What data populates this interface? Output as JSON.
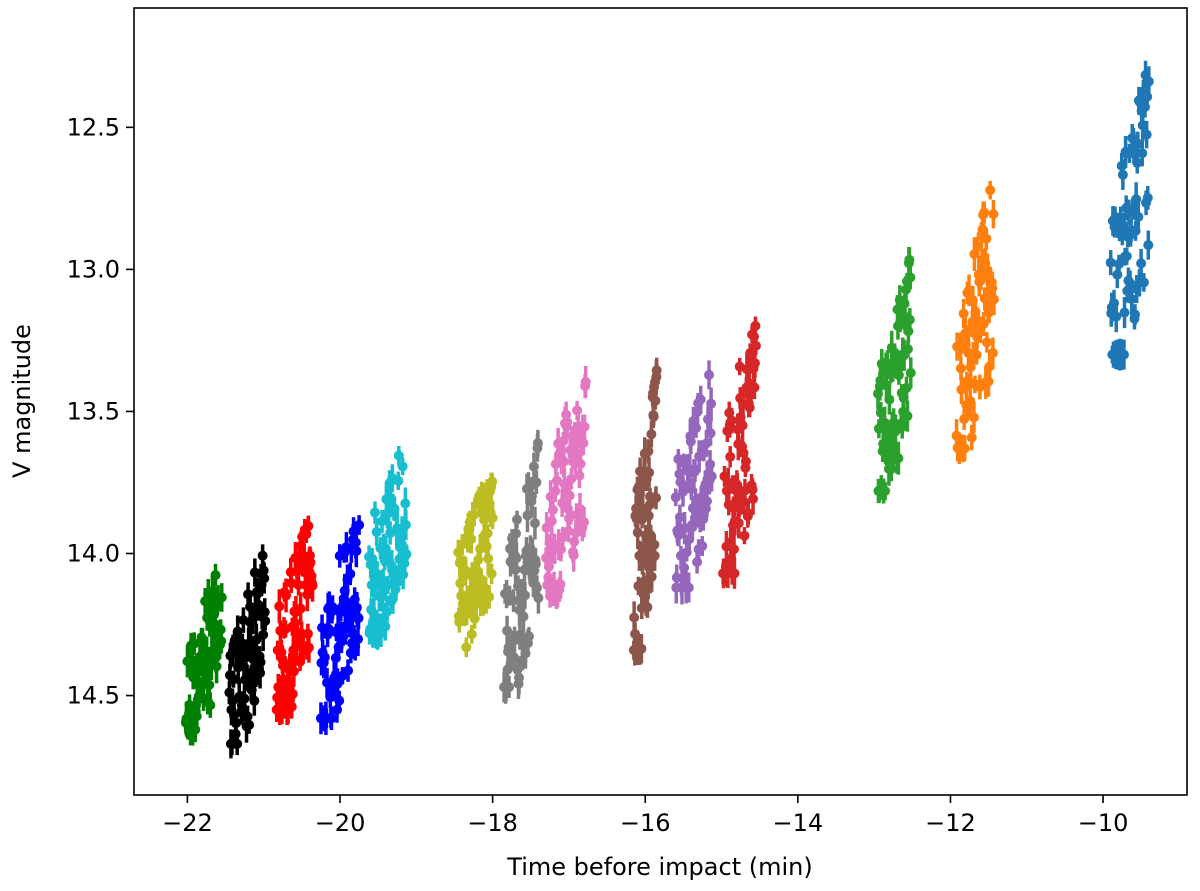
{
  "chart_data": {
    "type": "scatter",
    "title": "",
    "xlabel": "Time before impact (min)",
    "ylabel": "V magnitude",
    "xlim": [
      -22.7,
      -8.9
    ],
    "ylim": [
      14.85,
      12.08
    ],
    "y_inverted": true,
    "grid": false,
    "legend": "none",
    "error_bars": "vertical",
    "x_ticks": [
      -22,
      -20,
      -18,
      -16,
      -14,
      -12,
      -10
    ],
    "x_tick_labels": [
      "−22",
      "−20",
      "−18",
      "−16",
      "−14",
      "−12",
      "−10"
    ],
    "y_ticks": [
      12.5,
      13.0,
      13.5,
      14.0,
      14.5
    ],
    "y_tick_labels": [
      "12.5",
      "13.0",
      "13.5",
      "14.0",
      "14.5"
    ],
    "series": [
      {
        "color": "#008000",
        "x_start": -22.02,
        "x_end": -21.55,
        "y_low": 14.02,
        "y_high": 14.62,
        "n": 70
      },
      {
        "color": "#000000",
        "x_start": -21.45,
        "x_end": -20.98,
        "y_low": 13.95,
        "y_high": 14.67,
        "n": 70
      },
      {
        "color": "#ff0000",
        "x_start": -20.83,
        "x_end": -20.36,
        "y_low": 13.83,
        "y_high": 14.55,
        "n": 70
      },
      {
        "color": "#0000ff",
        "x_start": -20.25,
        "x_end": -19.75,
        "y_low": 13.81,
        "y_high": 14.58,
        "n": 70
      },
      {
        "color": "#17becf",
        "x_start": -19.62,
        "x_end": -19.13,
        "y_low": 13.54,
        "y_high": 14.28,
        "n": 70
      },
      {
        "color": "#bcbd22",
        "x_start": -18.45,
        "x_end": -18.0,
        "y_low": 13.66,
        "y_high": 14.33,
        "n": 70
      },
      {
        "color": "#7f7f7f",
        "x_start": -17.85,
        "x_end": -17.4,
        "y_low": 13.6,
        "y_high": 14.47,
        "n": 70
      },
      {
        "color": "#e377c2",
        "x_start": -17.3,
        "x_end": -16.78,
        "y_low": 13.3,
        "y_high": 14.15,
        "n": 70
      },
      {
        "color": "#8c564b",
        "x_start": -16.15,
        "x_end": -15.85,
        "y_low": 13.33,
        "y_high": 14.34,
        "n": 70
      },
      {
        "color": "#9467bd",
        "x_start": -15.6,
        "x_end": -15.13,
        "y_low": 13.26,
        "y_high": 14.12,
        "n": 70
      },
      {
        "color": "#d62728",
        "x_start": -14.98,
        "x_end": -14.55,
        "y_low": 13.1,
        "y_high": 14.07,
        "n": 70
      },
      {
        "color": "#2ca02c",
        "x_start": -12.95,
        "x_end": -12.52,
        "y_low": 12.93,
        "y_high": 13.78,
        "n": 70
      },
      {
        "color": "#ff7f0e",
        "x_start": -11.92,
        "x_end": -11.43,
        "y_low": 12.66,
        "y_high": 13.63,
        "n": 70
      },
      {
        "color": "#1f77b4",
        "x_start": -9.9,
        "x_end": -9.4,
        "y_low": 12.25,
        "y_high": 13.3,
        "n": 70
      }
    ]
  }
}
